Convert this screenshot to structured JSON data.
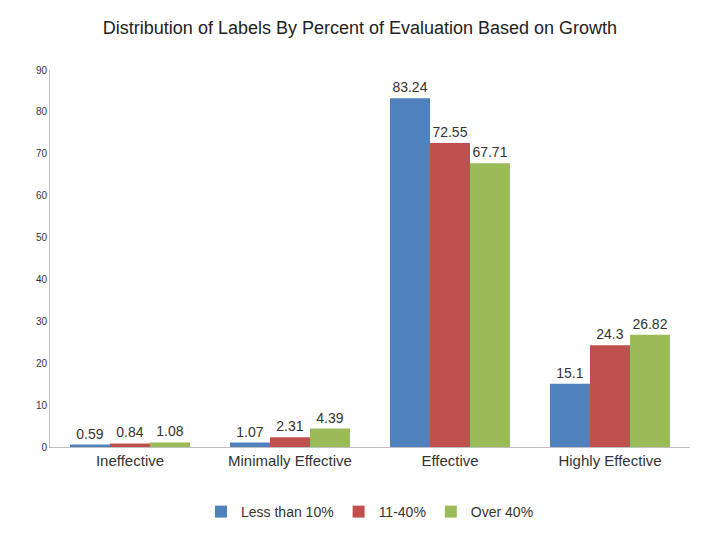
{
  "chart_data": {
    "type": "bar",
    "title": "Distribution of Labels By Percent of Evaluation Based on Growth",
    "categories": [
      "Ineffective",
      "Minimally Effective",
      "Effective",
      "Highly Effective"
    ],
    "series": [
      {
        "name": "Less than 10%",
        "color": "#4f81bd",
        "values": [
          0.59,
          1.07,
          83.24,
          15.1
        ]
      },
      {
        "name": "11-40%",
        "color": "#c0504d",
        "values": [
          0.84,
          2.31,
          72.55,
          24.3
        ]
      },
      {
        "name": "Over 40%",
        "color": "#9bbb59",
        "values": [
          1.08,
          4.39,
          67.71,
          26.82
        ]
      }
    ],
    "ylim": [
      0,
      90
    ],
    "yticks": [
      0,
      10,
      20,
      30,
      40,
      50,
      60,
      70,
      80,
      90
    ],
    "grid": false,
    "legend": "bottom",
    "data_labels": true
  }
}
